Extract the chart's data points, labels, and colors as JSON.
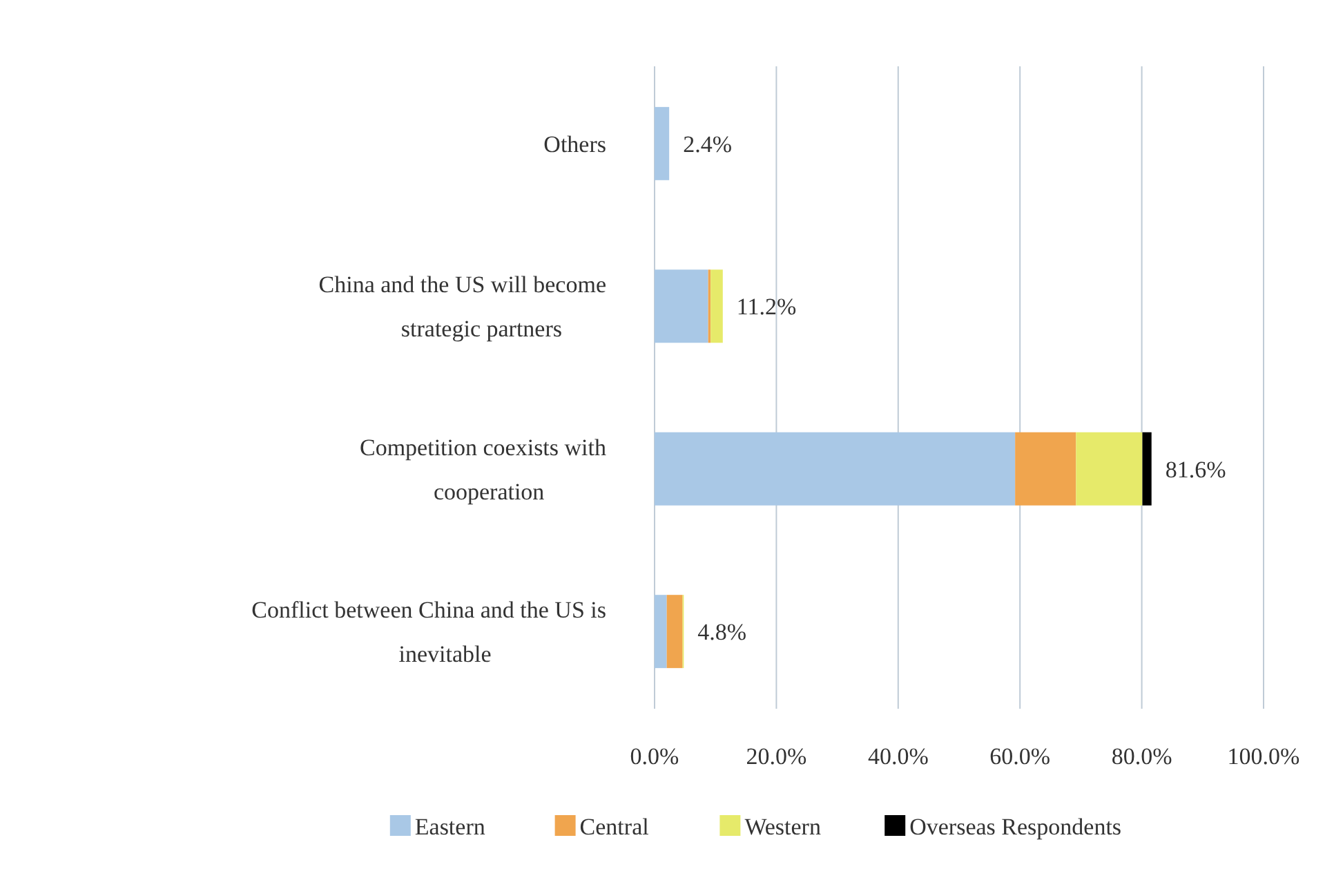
{
  "chart_data": {
    "type": "bar",
    "orientation": "horizontal",
    "stacked": true,
    "categories": [
      "Others",
      "China and the US will become strategic partners",
      "Competition coexists with cooperation",
      "Conflict between China and the US is inevitable"
    ],
    "series": [
      {
        "name": "Eastern",
        "color": "#a9c8e6",
        "values": [
          2.4,
          8.8,
          59.2,
          2.0
        ]
      },
      {
        "name": "Central",
        "color": "#f0a54e",
        "values": [
          0,
          0.4,
          10.0,
          2.6
        ]
      },
      {
        "name": "Western",
        "color": "#e6ea6a",
        "values": [
          0,
          2.0,
          10.9,
          0.2
        ]
      },
      {
        "name": "Overseas Respondents",
        "color": "#000000",
        "values": [
          0,
          0,
          1.5,
          0
        ]
      }
    ],
    "totals": [
      "2.4%",
      "11.2%",
      "81.6%",
      "4.8%"
    ],
    "xlim": [
      0,
      100
    ],
    "xticks": [
      {
        "value": 0,
        "label": "0.0%"
      },
      {
        "value": 20,
        "label": "20.0%"
      },
      {
        "value": 40,
        "label": "40.0%"
      },
      {
        "value": 60,
        "label": "60.0%"
      },
      {
        "value": 80,
        "label": "80.0%"
      },
      {
        "value": 100,
        "label": "100.0%"
      }
    ],
    "grid": "x",
    "legend": "bottom"
  }
}
